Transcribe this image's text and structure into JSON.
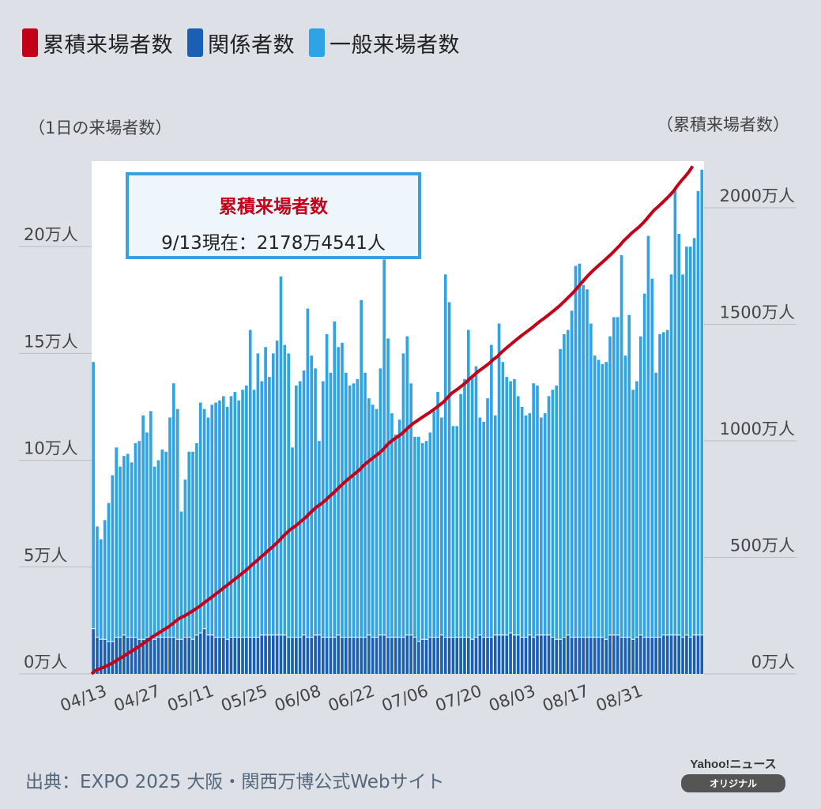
{
  "legend": [
    {
      "label": "累積来場者数",
      "color": "#c40018"
    },
    {
      "label": "関係者数",
      "color": "#1a5fb4"
    },
    {
      "label": "一般来場者数",
      "color": "#2fa3e6"
    }
  ],
  "callout": {
    "title": "累積来場者数",
    "text": "9/13現在：2178万4541人"
  },
  "source": "出典：EXPO 2025 大阪・関西万博公式Webサイト",
  "brand": {
    "name": "Yahoo!ニュース",
    "badge": "オリジナル"
  },
  "chart_data": {
    "type": "bar",
    "stacked": true,
    "left_axis": {
      "title": "（1日の来場者数）",
      "ticks": [
        "0万人",
        "5万人",
        "10万人",
        "15万人",
        "20万人"
      ],
      "range": [
        0,
        240000
      ]
    },
    "right_axis": {
      "title": "（累積来場者数）",
      "ticks": [
        "0万人",
        "500万人",
        "1000万人",
        "1500万人",
        "2000万人"
      ],
      "range": [
        0,
        22000000
      ]
    },
    "x_ticks": [
      "04/13",
      "04/27",
      "05/11",
      "05/25",
      "06/08",
      "06/22",
      "07/06",
      "07/20",
      "08/03",
      "08/17",
      "08/31"
    ],
    "start_date": "04/13",
    "end_date": "09/13",
    "series": [
      {
        "name": "関係者数",
        "color": "#1a5fb4",
        "values": [
          21000,
          17000,
          16000,
          16000,
          15000,
          15000,
          17000,
          17000,
          18000,
          17000,
          17000,
          17000,
          16000,
          16000,
          17000,
          17000,
          16000,
          17000,
          17000,
          17000,
          17000,
          17000,
          16000,
          16000,
          17000,
          17000,
          16000,
          18000,
          19000,
          21000,
          18000,
          18000,
          17000,
          17000,
          17000,
          16000,
          17000,
          17000,
          17000,
          17000,
          17000,
          17000,
          17000,
          17000,
          18000,
          18000,
          18000,
          18000,
          18000,
          18000,
          18000,
          17000,
          17000,
          17000,
          17000,
          18000,
          17000,
          17000,
          18000,
          18000,
          17000,
          17000,
          17000,
          17000,
          18000,
          17000,
          17000,
          17000,
          17000,
          17000,
          17000,
          17000,
          18000,
          17000,
          17000,
          18000,
          18000,
          17000,
          17000,
          17000,
          17000,
          17000,
          18000,
          18000,
          17000,
          15000,
          16000,
          16000,
          17000,
          17000,
          17000,
          18000,
          17000,
          17000,
          17000,
          17000,
          17000,
          17000,
          17000,
          16000,
          17000,
          18000,
          17000,
          17000,
          17000,
          18000,
          18000,
          18000,
          18000,
          19000,
          18000,
          18000,
          17000,
          17000,
          18000,
          17000,
          18000,
          18000,
          18000,
          18000,
          17000,
          16000,
          16000,
          17000,
          18000,
          17000,
          17000,
          17000,
          17000,
          17000,
          17000,
          17000,
          17000,
          17000,
          16000,
          18000,
          18000,
          18000,
          17000,
          17000,
          17000,
          16000,
          17000,
          18000,
          17000,
          17000,
          17000,
          17000,
          17000,
          18000,
          18000,
          18000,
          18000,
          18000,
          17000,
          18000,
          17000,
          18000,
          18000,
          18000
        ]
      },
      {
        "name": "一般来場者数",
        "color": "#2fa3e6",
        "values": [
          125000,
          52000,
          47000,
          56000,
          65000,
          78000,
          89000,
          80000,
          84000,
          86000,
          82000,
          91000,
          93000,
          105000,
          96000,
          106000,
          81000,
          83000,
          88000,
          87000,
          103000,
          119000,
          108000,
          60000,
          74000,
          87000,
          88000,
          90000,
          108000,
          103000,
          102000,
          108000,
          110000,
          111000,
          113000,
          109000,
          113000,
          115000,
          111000,
          116000,
          118000,
          144000,
          116000,
          133000,
          119000,
          135000,
          121000,
          132000,
          138000,
          168000,
          136000,
          133000,
          89000,
          118000,
          120000,
          124000,
          154000,
          132000,
          125000,
          91000,
          120000,
          142000,
          124000,
          148000,
          135000,
          138000,
          124000,
          118000,
          119000,
          121000,
          158000,
          124000,
          111000,
          109000,
          107000,
          125000,
          176000,
          140000,
          105000,
          95000,
          102000,
          133000,
          140000,
          118000,
          94000,
          96000,
          92000,
          93000,
          96000,
          106000,
          115000,
          102000,
          170000,
          157000,
          99000,
          99000,
          114000,
          121000,
          144000,
          123000,
          127000,
          102000,
          101000,
          112000,
          137000,
          103000,
          146000,
          128000,
          121000,
          118000,
          120000,
          112000,
          108000,
          104000,
          104000,
          119000,
          117000,
          102000,
          104000,
          112000,
          116000,
          119000,
          136000,
          142000,
          143000,
          153000,
          174000,
          175000,
          165000,
          163000,
          147000,
          132000,
          130000,
          128000,
          130000,
          140000,
          149000,
          149000,
          179000,
          132000,
          151000,
          117000,
          120000,
          140000,
          161000,
          188000,
          168000,
          124000,
          142000,
          142000,
          143000,
          169000,
          209000,
          188000,
          170000,
          182000,
          183000,
          186000,
          208000,
          218000
        ]
      },
      {
        "name": "累積来場者数",
        "color": "#c40018",
        "axis": "right",
        "values": [
          146000,
          215000,
          278000,
          350000,
          430000,
          523000,
          629000,
          726000,
          828000,
          931000,
          1030000,
          1138000,
          1247000,
          1369000,
          1482000,
          1605000,
          1702000,
          1802000,
          1907000,
          2011000,
          2131000,
          2267000,
          2391000,
          2467000,
          2558000,
          2662000,
          2766000,
          2874000,
          3001000,
          3125000,
          3245000,
          3371000,
          3498000,
          3626000,
          3756000,
          3881000,
          4011000,
          4143000,
          4271000,
          4404000,
          4539000,
          4700000,
          4833000,
          4984000,
          5121000,
          5274000,
          5413000,
          5563000,
          5719000,
          5905000,
          6059000,
          6209000,
          6315000,
          6450000,
          6587000,
          6729000,
          6900000,
          7049000,
          7192000,
          7301000,
          7438000,
          7597000,
          7738000,
          7903000,
          8056000,
          8211000,
          8352000,
          8487000,
          8623000,
          8761000,
          8936000,
          9077000,
          9206000,
          9332000,
          9456000,
          9599000,
          9793000,
          9950000,
          10072000,
          10184000,
          10303000,
          10453000,
          10611000,
          10747000,
          10858000,
          10969000,
          11077000,
          11186000,
          11299000,
          11422000,
          11554000,
          11674000,
          11861000,
          12035000,
          12151000,
          12267000,
          12398000,
          12536000,
          12697000,
          12836000,
          12980000,
          13100000,
          13218000,
          13347000,
          13501000,
          13622000,
          13786000,
          13932000,
          14071000,
          14208000,
          14346000,
          14476000,
          14601000,
          14722000,
          14844000,
          14980000,
          15115000,
          15235000,
          15357000,
          15487000,
          15620000,
          15755000,
          15909000,
          16068000,
          16229000,
          16399000,
          16591000,
          16783000,
          16965000,
          17145000,
          17309000,
          17458000,
          17605000,
          17750000,
          17897000,
          18054000,
          18220000,
          18387000,
          18584000,
          18734000,
          18903000,
          19038000,
          19175000,
          19335000,
          19514000,
          19720000,
          19906000,
          20046000,
          20204000,
          20363000,
          20524000,
          20711000,
          20938000,
          21145000,
          21333000,
          21533000,
          21784541
        ]
      }
    ]
  }
}
